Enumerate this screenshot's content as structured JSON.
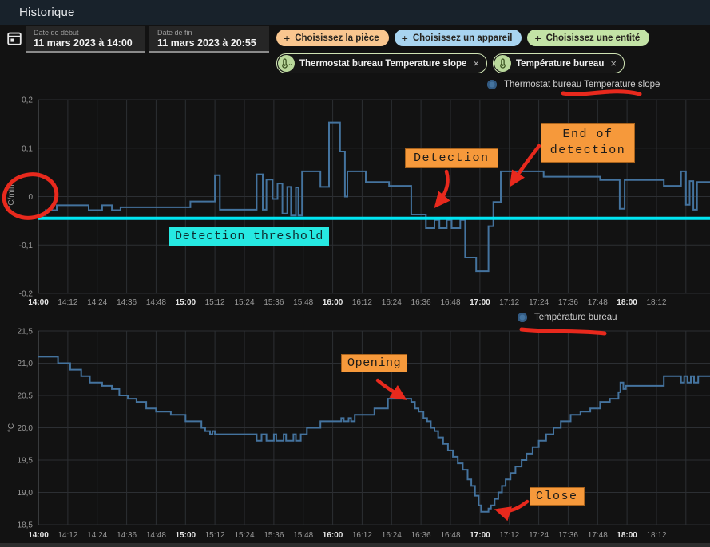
{
  "header": {
    "title": "Historique"
  },
  "icons": {
    "plus": "+",
    "close": "×",
    "chevron_down": "⌄"
  },
  "controls": {
    "start_date": {
      "label": "Date de début",
      "value": "11 mars 2023 à 14:00"
    },
    "end_date": {
      "label": "Date de fin",
      "value": "11 mars 2023 à 20:55"
    },
    "chips": [
      {
        "label": "Choisissez la pièce",
        "color": "#f9c68f"
      },
      {
        "label": "Choisissez un appareil",
        "color": "#a8d4f0"
      },
      {
        "label": "Choisissez une entité",
        "color": "#c3e3a6"
      }
    ],
    "entity_chips": [
      {
        "label": "Thermostat bureau Temperature slope"
      },
      {
        "label": "Température bureau"
      }
    ]
  },
  "annotations": {
    "detection": "Detection",
    "end_of_detection": "End of detection",
    "detection_threshold": "Detection threshold",
    "opening": "Opening",
    "close": "Close"
  },
  "chart_data": [
    {
      "type": "line",
      "step": true,
      "legend": "Thermostat bureau Temperature slope",
      "ylabel": "°C/min",
      "yticks": [
        "0,2",
        "0,1",
        "0",
        "-0,1",
        "-0,2"
      ],
      "ytick_values": [
        0.2,
        0.1,
        0,
        -0.1,
        -0.2
      ],
      "ylim": [
        -0.2,
        0.2
      ],
      "grid": true,
      "legend_position": "top-right",
      "x_ticks": [
        "14:00",
        "14:12",
        "14:24",
        "14:36",
        "14:48",
        "15:00",
        "15:12",
        "15:24",
        "15:36",
        "15:48",
        "16:00",
        "16:12",
        "16:24",
        "16:36",
        "16:48",
        "17:00",
        "17:12",
        "17:24",
        "17:36",
        "17:48",
        "18:00",
        "18:12"
      ],
      "x_minutes_range": [
        0,
        273
      ],
      "line_color": "#44739e",
      "threshold": {
        "value": -0.045,
        "color": "#00e5f2"
      },
      "points": [
        [
          0,
          -0.038
        ],
        [
          3,
          -0.028
        ],
        [
          7.5,
          -0.018
        ],
        [
          20.5,
          -0.028
        ],
        [
          26,
          -0.018
        ],
        [
          30,
          -0.028
        ],
        [
          33.5,
          -0.022
        ],
        [
          62,
          -0.01
        ],
        [
          72,
          0.044
        ],
        [
          74,
          -0.027
        ],
        [
          89,
          0.046
        ],
        [
          91.5,
          -0.027
        ],
        [
          93,
          0.035
        ],
        [
          95.5,
          -0.005
        ],
        [
          97.5,
          0.027
        ],
        [
          99.5,
          -0.035
        ],
        [
          101.5,
          0.02
        ],
        [
          103,
          -0.039
        ],
        [
          105,
          0.019
        ],
        [
          106,
          -0.039
        ],
        [
          107.5,
          0.052
        ],
        [
          115,
          0.02
        ],
        [
          118.5,
          0.153
        ],
        [
          123,
          0.093
        ],
        [
          125,
          0.0
        ],
        [
          126,
          0.052
        ],
        [
          133.5,
          0.03
        ],
        [
          143,
          0.022
        ],
        [
          152,
          -0.037
        ],
        [
          158,
          -0.065
        ],
        [
          161.5,
          -0.048
        ],
        [
          163.5,
          -0.065
        ],
        [
          166.5,
          -0.048
        ],
        [
          168.5,
          -0.065
        ],
        [
          172,
          -0.048
        ],
        [
          174,
          -0.126
        ],
        [
          178.5,
          -0.154
        ],
        [
          183.5,
          -0.061
        ],
        [
          185.5,
          -0.011
        ],
        [
          188.5,
          0.052
        ],
        [
          206,
          0.041
        ],
        [
          229,
          0.034
        ],
        [
          237,
          -0.025
        ],
        [
          239,
          0.034
        ],
        [
          255,
          0.022
        ],
        [
          262,
          0.052
        ],
        [
          264,
          -0.017
        ],
        [
          265.5,
          0.032
        ],
        [
          267,
          -0.027
        ],
        [
          268.5,
          0.03
        ]
      ]
    },
    {
      "type": "line",
      "step": true,
      "legend": "Température bureau",
      "ylabel": "°C",
      "yticks": [
        "21,5",
        "21,0",
        "20,5",
        "20,0",
        "19,5",
        "19,0",
        "18,5"
      ],
      "ytick_values": [
        21.5,
        21.0,
        20.5,
        20.0,
        19.5,
        19.0,
        18.5
      ],
      "ylim": [
        18.5,
        21.5
      ],
      "grid": true,
      "legend_position": "top-right",
      "x_ticks": [
        "14:00",
        "14:12",
        "14:24",
        "14:36",
        "14:48",
        "15:00",
        "15:12",
        "15:24",
        "15:36",
        "15:48",
        "16:00",
        "16:12",
        "16:24",
        "16:36",
        "16:48",
        "17:00",
        "17:12",
        "17:24",
        "17:36",
        "17:48",
        "18:00",
        "18:12"
      ],
      "x_minutes_range": [
        0,
        273
      ],
      "line_color": "#44739e",
      "points": [
        [
          0,
          21.1
        ],
        [
          8,
          21.0
        ],
        [
          13,
          20.9
        ],
        [
          17.5,
          20.8
        ],
        [
          21,
          20.7
        ],
        [
          26,
          20.65
        ],
        [
          30,
          20.6
        ],
        [
          33,
          20.5
        ],
        [
          36.5,
          20.45
        ],
        [
          40,
          20.4
        ],
        [
          44,
          20.3
        ],
        [
          48,
          20.25
        ],
        [
          54,
          20.2
        ],
        [
          60,
          20.1
        ],
        [
          66.5,
          20.0
        ],
        [
          68,
          19.95
        ],
        [
          70,
          19.9
        ],
        [
          71,
          19.95
        ],
        [
          72,
          19.9
        ],
        [
          89,
          19.8
        ],
        [
          91,
          19.9
        ],
        [
          93,
          19.8
        ],
        [
          96,
          19.9
        ],
        [
          97,
          19.8
        ],
        [
          100,
          19.9
        ],
        [
          101,
          19.8
        ],
        [
          104,
          19.9
        ],
        [
          105,
          19.8
        ],
        [
          107,
          19.9
        ],
        [
          109.5,
          20.0
        ],
        [
          115,
          20.1
        ],
        [
          123.5,
          20.15
        ],
        [
          124.5,
          20.1
        ],
        [
          126.5,
          20.15
        ],
        [
          127.5,
          20.1
        ],
        [
          129,
          20.2
        ],
        [
          137,
          20.3
        ],
        [
          142.5,
          20.45
        ],
        [
          152,
          20.4
        ],
        [
          153.5,
          20.3
        ],
        [
          155,
          20.25
        ],
        [
          157,
          20.15
        ],
        [
          158.5,
          20.1
        ],
        [
          160,
          20.0
        ],
        [
          161.5,
          19.95
        ],
        [
          163,
          19.85
        ],
        [
          165,
          19.75
        ],
        [
          167,
          19.65
        ],
        [
          169,
          19.55
        ],
        [
          171,
          19.45
        ],
        [
          173,
          19.35
        ],
        [
          175,
          19.2
        ],
        [
          176.5,
          19.1
        ],
        [
          178,
          18.95
        ],
        [
          179.5,
          18.8
        ],
        [
          180.5,
          18.7
        ],
        [
          183.5,
          18.75
        ],
        [
          184.5,
          18.8
        ],
        [
          186,
          18.9
        ],
        [
          187.5,
          19.0
        ],
        [
          189,
          19.1
        ],
        [
          190.5,
          19.2
        ],
        [
          192.5,
          19.3
        ],
        [
          194.5,
          19.4
        ],
        [
          197,
          19.5
        ],
        [
          199,
          19.6
        ],
        [
          201.5,
          19.7
        ],
        [
          204,
          19.8
        ],
        [
          207,
          19.9
        ],
        [
          210,
          20.0
        ],
        [
          213,
          20.1
        ],
        [
          217,
          20.2
        ],
        [
          221,
          20.25
        ],
        [
          225,
          20.3
        ],
        [
          229,
          20.4
        ],
        [
          233,
          20.45
        ],
        [
          236.5,
          20.55
        ],
        [
          237.3,
          20.7
        ],
        [
          238.5,
          20.6
        ],
        [
          239.5,
          20.65
        ],
        [
          255,
          20.8
        ],
        [
          262,
          20.7
        ],
        [
          263.3,
          20.8
        ],
        [
          264.6,
          20.7
        ],
        [
          266,
          20.8
        ],
        [
          267.3,
          20.7
        ],
        [
          269,
          20.8
        ]
      ]
    }
  ]
}
